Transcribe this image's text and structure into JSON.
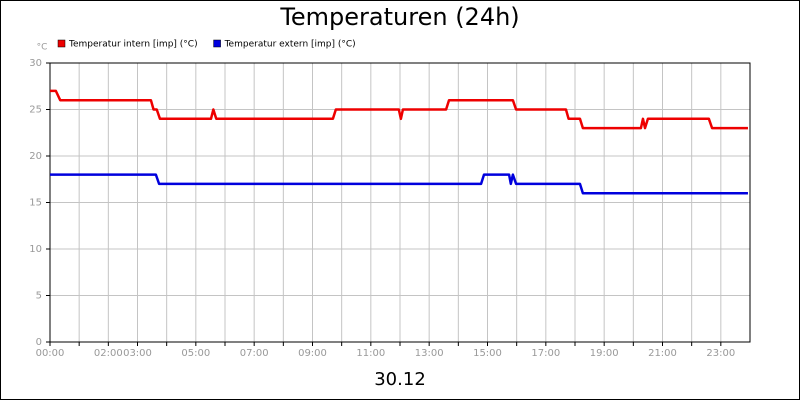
{
  "chart_data": {
    "type": "line",
    "title": "Temperaturen (24h)",
    "y_label": "°C",
    "x_label": "30.12",
    "xlim": [
      0,
      24
    ],
    "ylim": [
      0,
      30
    ],
    "yticks": [
      0,
      5,
      10,
      15,
      20,
      25,
      30
    ],
    "grid": true,
    "xticks": [
      {
        "value": 0,
        "label": "00:00"
      },
      {
        "value": 1,
        "label": null
      },
      {
        "value": 2,
        "label": "02:00"
      },
      {
        "value": 3,
        "label": "03:00"
      },
      {
        "value": 4,
        "label": null
      },
      {
        "value": 5,
        "label": "05:00"
      },
      {
        "value": 6,
        "label": null
      },
      {
        "value": 7,
        "label": "07:00"
      },
      {
        "value": 8,
        "label": null
      },
      {
        "value": 9,
        "label": "09:00"
      },
      {
        "value": 10,
        "label": null
      },
      {
        "value": 11,
        "label": "11:00"
      },
      {
        "value": 12,
        "label": null
      },
      {
        "value": 13,
        "label": "13:00"
      },
      {
        "value": 14,
        "label": null
      },
      {
        "value": 15,
        "label": "15:00"
      },
      {
        "value": 16,
        "label": null
      },
      {
        "value": 17,
        "label": "17:00"
      },
      {
        "value": 18,
        "label": null
      },
      {
        "value": 19,
        "label": "19:00"
      },
      {
        "value": 20,
        "label": null
      },
      {
        "value": 21,
        "label": "21:00"
      },
      {
        "value": 22,
        "label": null
      },
      {
        "value": 23,
        "label": "23:00"
      }
    ],
    "series": [
      {
        "name": "Temperatur intern [imp] (°C)",
        "color": "#ee0000",
        "x": [
          0,
          0.2,
          0.35,
          3.46,
          3.55,
          3.66,
          3.77,
          5.52,
          5.6,
          5.7,
          9.7,
          9.8,
          11.96,
          12.03,
          12.1,
          13.58,
          13.68,
          15.87,
          15.98,
          17.69,
          17.78,
          18.17,
          18.27,
          20.26,
          20.33,
          20.4,
          20.5,
          22.59,
          22.7,
          23.93
        ],
        "values": [
          27,
          27,
          26,
          26,
          25,
          25,
          24,
          24,
          25,
          24,
          24,
          25,
          25,
          24,
          25,
          25,
          26,
          26,
          25,
          25,
          24,
          24,
          23,
          23,
          24,
          23,
          24,
          24,
          23,
          23
        ]
      },
      {
        "name": "Temperatur extern [imp] (°C)",
        "color": "#0000dd",
        "x": [
          0,
          3.63,
          3.74,
          14.78,
          14.88,
          15.74,
          15.8,
          15.87,
          15.98,
          18.17,
          18.27,
          23.93
        ],
        "values": [
          18,
          18,
          17,
          17,
          18,
          18,
          17,
          18,
          17,
          17,
          16,
          16
        ]
      }
    ]
  }
}
